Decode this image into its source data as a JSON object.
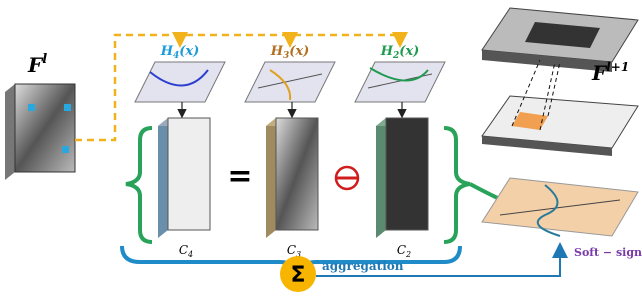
{
  "input": {
    "label": "F",
    "superscript": "l"
  },
  "functions": [
    {
      "label": "H",
      "subscript": "4",
      "argument": "(x)"
    },
    {
      "label": "H",
      "subscript": "3",
      "argument": "(x)"
    },
    {
      "label": "H",
      "subscript": "2",
      "argument": "(x)"
    }
  ],
  "maps": [
    {
      "label": "C",
      "subscript": "4"
    },
    {
      "label": "C",
      "subscript": "3"
    },
    {
      "label": "C",
      "subscript": "2"
    }
  ],
  "operator": "=",
  "aggregation": {
    "symbol": "Σ",
    "label": "aggregation"
  },
  "output": {
    "label": "F",
    "superscript": "l+1"
  },
  "activation": "Soft − sign"
}
